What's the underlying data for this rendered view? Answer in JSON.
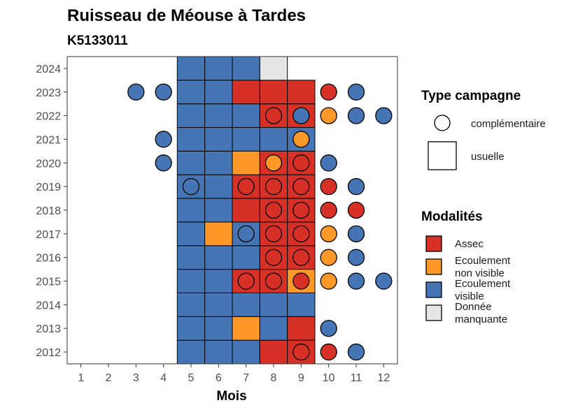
{
  "chart_data": {
    "type": "heatmap",
    "title": "Ruisseau de Méouse à Tardes",
    "subtitle": "K5133011",
    "xlabel": "Mois",
    "ylabel": "",
    "x_ticks": [
      "1",
      "2",
      "3",
      "4",
      "5",
      "6",
      "7",
      "8",
      "9",
      "10",
      "11",
      "12"
    ],
    "y_ticks": [
      "2012",
      "2013",
      "2014",
      "2015",
      "2016",
      "2017",
      "2018",
      "2019",
      "2020",
      "2021",
      "2022",
      "2023",
      "2024"
    ],
    "xlim": [
      0.5,
      12.5
    ],
    "ylim": [
      2011.5,
      2024.5
    ],
    "colors": {
      "A": "#d73027",
      "NV": "#fe9929",
      "V": "#4575b4",
      "M": "#e6e6e6"
    },
    "legend_shape": {
      "title": "Type campagne",
      "items": [
        {
          "shape": "circle",
          "label": "complémentaire"
        },
        {
          "shape": "square",
          "label": "usuelle"
        }
      ]
    },
    "legend_color": {
      "title": "Modalités",
      "items": [
        {
          "key": "A",
          "label_lines": [
            "Assec"
          ]
        },
        {
          "key": "NV",
          "label_lines": [
            "Ecoulement",
            "non visible"
          ]
        },
        {
          "key": "V",
          "label_lines": [
            "Ecoulement",
            "visible"
          ]
        },
        {
          "key": "M",
          "label_lines": [
            "Donnée",
            "manquante"
          ]
        }
      ]
    },
    "usuelle": [
      {
        "year": 2012,
        "months": [
          5,
          6,
          7,
          8,
          9
        ],
        "values": [
          "V",
          "V",
          "V",
          "A",
          "A"
        ]
      },
      {
        "year": 2013,
        "months": [
          5,
          6,
          7,
          8,
          9
        ],
        "values": [
          "V",
          "V",
          "NV",
          "V",
          "A"
        ]
      },
      {
        "year": 2014,
        "months": [
          5,
          6,
          7,
          8,
          9
        ],
        "values": [
          "V",
          "V",
          "V",
          "V",
          "V"
        ]
      },
      {
        "year": 2015,
        "months": [
          5,
          6,
          7,
          8,
          9
        ],
        "values": [
          "V",
          "V",
          "A",
          "A",
          "NV"
        ]
      },
      {
        "year": 2016,
        "months": [
          5,
          6,
          7,
          8,
          9
        ],
        "values": [
          "V",
          "V",
          "V",
          "A",
          "A"
        ]
      },
      {
        "year": 2017,
        "months": [
          5,
          6,
          7,
          8,
          9
        ],
        "values": [
          "V",
          "NV",
          "V",
          "A",
          "A"
        ]
      },
      {
        "year": 2018,
        "months": [
          5,
          6,
          7,
          8,
          9
        ],
        "values": [
          "V",
          "V",
          "A",
          "A",
          "A"
        ]
      },
      {
        "year": 2019,
        "months": [
          5,
          6,
          7,
          8,
          9
        ],
        "values": [
          "V",
          "V",
          "A",
          "A",
          "A"
        ]
      },
      {
        "year": 2020,
        "months": [
          5,
          6,
          7,
          8,
          9
        ],
        "values": [
          "V",
          "V",
          "NV",
          "A",
          "A"
        ]
      },
      {
        "year": 2021,
        "months": [
          5,
          6,
          7,
          8,
          9
        ],
        "values": [
          "V",
          "V",
          "V",
          "V",
          "V"
        ]
      },
      {
        "year": 2022,
        "months": [
          5,
          6,
          7,
          8,
          9
        ],
        "values": [
          "V",
          "V",
          "V",
          "A",
          "A"
        ]
      },
      {
        "year": 2023,
        "months": [
          5,
          6,
          7,
          8,
          9
        ],
        "values": [
          "V",
          "V",
          "A",
          "A",
          "A"
        ]
      },
      {
        "year": 2024,
        "months": [
          5,
          6,
          7,
          8
        ],
        "values": [
          "V",
          "V",
          "V",
          "M"
        ]
      }
    ],
    "complementaire": [
      {
        "year": 2012,
        "months": [
          9,
          10,
          11
        ],
        "values": [
          "A",
          "A",
          "V"
        ]
      },
      {
        "year": 2013,
        "months": [
          10
        ],
        "values": [
          "V"
        ]
      },
      {
        "year": 2015,
        "months": [
          7,
          8,
          9,
          10,
          11,
          12
        ],
        "values": [
          "A",
          "A",
          "A",
          "NV",
          "V",
          "V"
        ]
      },
      {
        "year": 2016,
        "months": [
          8,
          9,
          10,
          11
        ],
        "values": [
          "A",
          "A",
          "NV",
          "V"
        ]
      },
      {
        "year": 2017,
        "months": [
          7,
          8,
          9,
          10,
          11
        ],
        "values": [
          "V",
          "A",
          "A",
          "NV",
          "V"
        ]
      },
      {
        "year": 2018,
        "months": [
          8,
          9,
          10,
          11
        ],
        "values": [
          "A",
          "A",
          "A",
          "A"
        ]
      },
      {
        "year": 2019,
        "months": [
          5,
          7,
          8,
          9,
          10,
          11
        ],
        "values": [
          "V",
          "A",
          "A",
          "A",
          "A",
          "V"
        ]
      },
      {
        "year": 2020,
        "months": [
          4,
          8,
          9,
          10
        ],
        "values": [
          "V",
          "NV",
          "A",
          "V"
        ]
      },
      {
        "year": 2021,
        "months": [
          4,
          9
        ],
        "values": [
          "V",
          "NV"
        ]
      },
      {
        "year": 2022,
        "months": [
          8,
          9,
          10,
          11,
          12
        ],
        "values": [
          "A",
          "V",
          "NV",
          "V",
          "V"
        ]
      },
      {
        "year": 2023,
        "months": [
          3,
          4,
          10,
          11
        ],
        "values": [
          "V",
          "V",
          "A",
          "V"
        ]
      }
    ]
  }
}
